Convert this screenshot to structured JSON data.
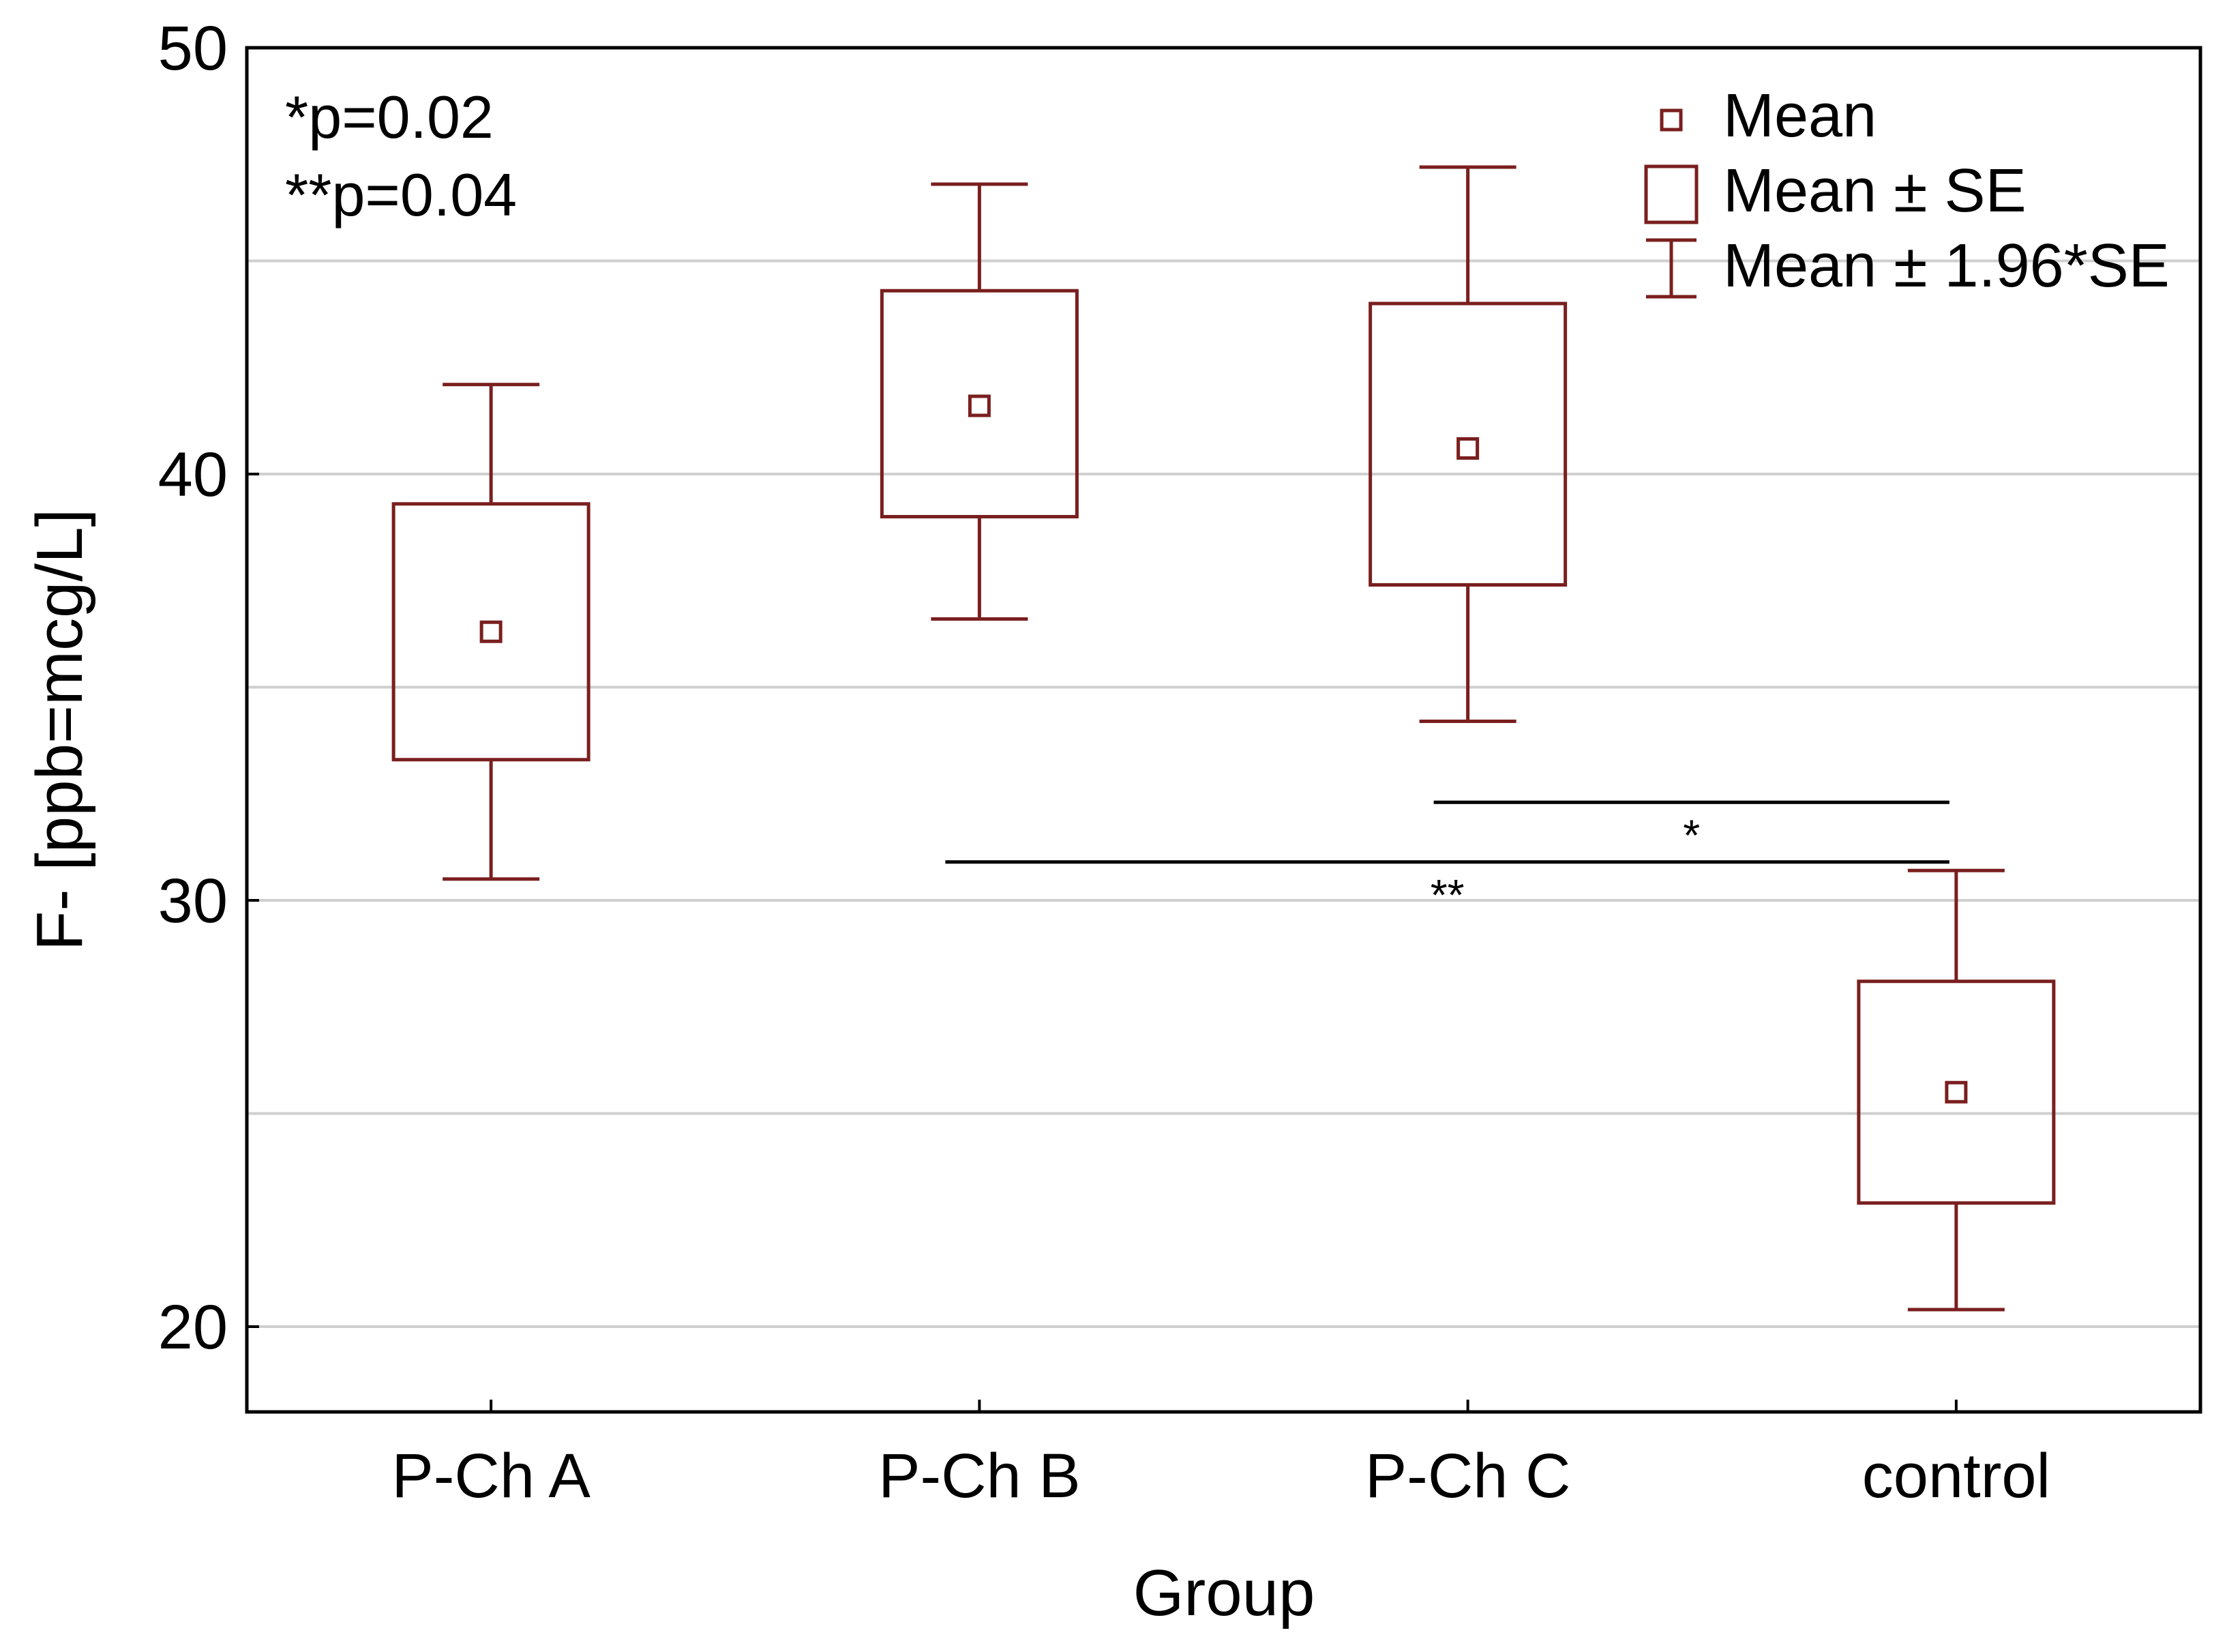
{
  "chart_data": {
    "type": "box",
    "xlabel": "Group",
    "ylabel": "F- [ppb=mcg/L]",
    "ylim": [
      18,
      50
    ],
    "yticks": [
      20,
      30,
      40,
      50
    ],
    "grid": true,
    "series_color": "#7a1f1f",
    "categories": [
      "P-Ch A",
      "P-Ch B",
      "P-Ch C",
      "control"
    ],
    "mean": [
      36.3,
      41.6,
      40.6,
      25.5
    ],
    "se_low": [
      33.3,
      39.0,
      37.4,
      22.9
    ],
    "se_high": [
      39.3,
      44.3,
      44.0,
      28.1
    ],
    "ci_low": [
      30.5,
      36.6,
      34.2,
      20.4
    ],
    "ci_high": [
      42.1,
      46.8,
      47.2,
      30.7
    ],
    "legend": {
      "position": "top-right",
      "mean_label": "Mean",
      "se_label": "Mean ± SE",
      "ci_label": "Mean ± 1.96*SE"
    },
    "annotations": {
      "p_values": [
        "*p=0.02",
        "**p=0.04"
      ]
    },
    "significance": [
      {
        "from": "P-Ch C",
        "to": "control",
        "y": 32.3,
        "mark": "*"
      },
      {
        "from": "P-Ch B",
        "to": "control",
        "y": 30.9,
        "mark": "**"
      }
    ]
  }
}
